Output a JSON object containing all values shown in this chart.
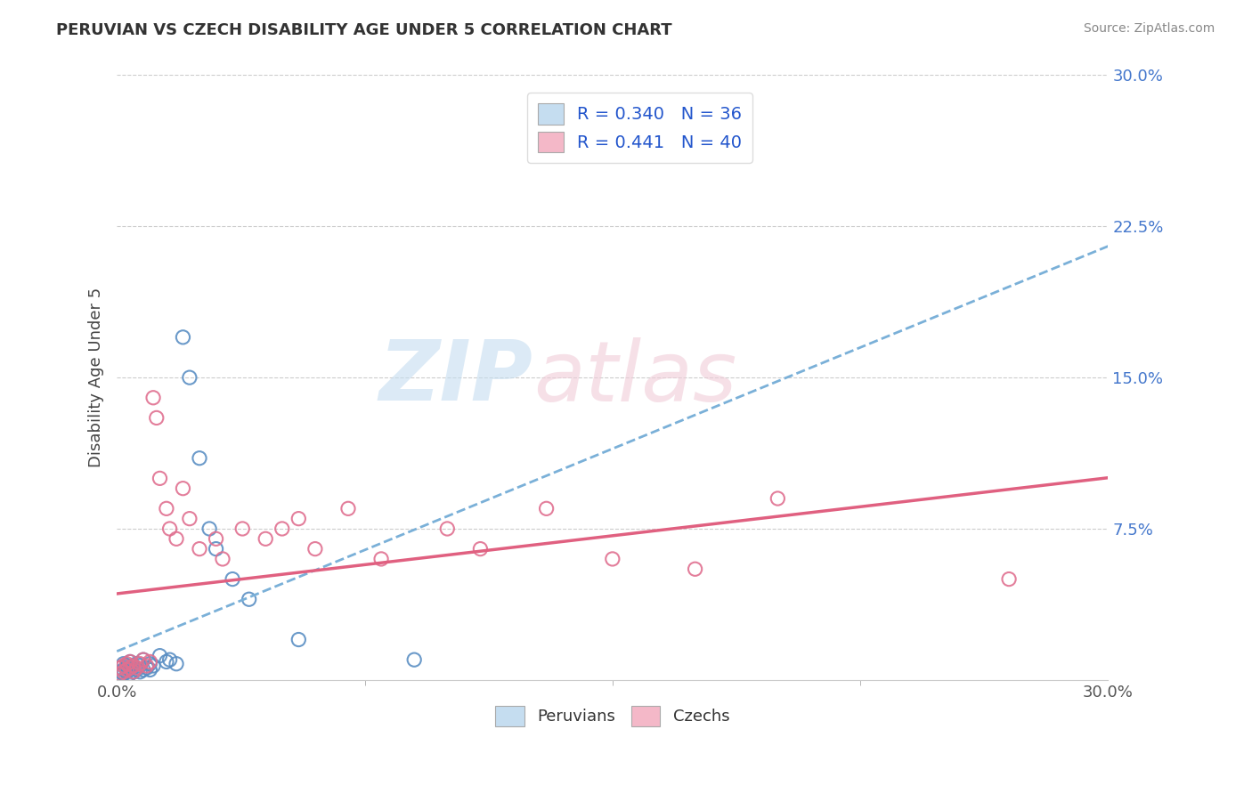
{
  "title": "PERUVIAN VS CZECH DISABILITY AGE UNDER 5 CORRELATION CHART",
  "source": "Source: ZipAtlas.com",
  "ylabel": "Disability Age Under 5",
  "xlim": [
    0.0,
    0.3
  ],
  "ylim": [
    0.0,
    0.3
  ],
  "xticks": [
    0.0,
    0.3
  ],
  "xticklabels": [
    "0.0%",
    "30.0%"
  ],
  "yticks": [
    0.075,
    0.15,
    0.225,
    0.3
  ],
  "yticklabels": [
    "7.5%",
    "15.0%",
    "22.5%",
    "30.0%"
  ],
  "peruvian_color": "#8ab4d8",
  "peruvian_edge": "#5b8fc4",
  "czech_color": "#f4b8c8",
  "czech_edge": "#e07090",
  "peruvian_R": 0.34,
  "peruvian_N": 36,
  "czech_R": 0.441,
  "czech_N": 40,
  "background_color": "#ffffff",
  "grid_color": "#cccccc",
  "legend_label_peruvian": "Peruvians",
  "legend_label_czech": "Czechs",
  "tick_color_y": "#4477cc",
  "tick_color_x": "#555555",
  "peru_x": [
    0.001,
    0.001,
    0.002,
    0.002,
    0.002,
    0.003,
    0.003,
    0.003,
    0.004,
    0.004,
    0.004,
    0.005,
    0.005,
    0.006,
    0.006,
    0.007,
    0.007,
    0.008,
    0.008,
    0.009,
    0.01,
    0.01,
    0.011,
    0.013,
    0.015,
    0.016,
    0.018,
    0.02,
    0.022,
    0.025,
    0.028,
    0.03,
    0.035,
    0.04,
    0.055,
    0.09
  ],
  "peru_y": [
    0.004,
    0.006,
    0.003,
    0.005,
    0.008,
    0.004,
    0.006,
    0.007,
    0.003,
    0.005,
    0.009,
    0.004,
    0.007,
    0.005,
    0.008,
    0.004,
    0.007,
    0.005,
    0.01,
    0.006,
    0.005,
    0.008,
    0.007,
    0.012,
    0.009,
    0.01,
    0.008,
    0.17,
    0.15,
    0.11,
    0.075,
    0.065,
    0.05,
    0.04,
    0.02,
    0.01
  ],
  "czech_x": [
    0.001,
    0.001,
    0.002,
    0.002,
    0.003,
    0.003,
    0.004,
    0.004,
    0.005,
    0.005,
    0.006,
    0.007,
    0.008,
    0.009,
    0.01,
    0.011,
    0.012,
    0.013,
    0.015,
    0.016,
    0.018,
    0.02,
    0.022,
    0.025,
    0.03,
    0.032,
    0.038,
    0.045,
    0.05,
    0.055,
    0.06,
    0.07,
    0.08,
    0.1,
    0.11,
    0.13,
    0.15,
    0.175,
    0.2,
    0.27
  ],
  "czech_y": [
    0.003,
    0.006,
    0.004,
    0.007,
    0.005,
    0.008,
    0.006,
    0.009,
    0.004,
    0.007,
    0.006,
    0.008,
    0.01,
    0.007,
    0.009,
    0.14,
    0.13,
    0.1,
    0.085,
    0.075,
    0.07,
    0.095,
    0.08,
    0.065,
    0.07,
    0.06,
    0.075,
    0.07,
    0.075,
    0.08,
    0.065,
    0.085,
    0.06,
    0.075,
    0.065,
    0.085,
    0.06,
    0.055,
    0.09,
    0.05
  ]
}
